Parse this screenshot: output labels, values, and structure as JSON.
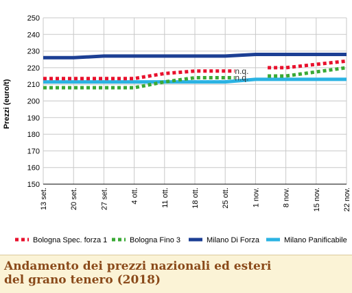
{
  "chart_data": {
    "type": "line",
    "ylabel": "Prezzi (euro/t)",
    "xlabel": "",
    "ylim": [
      150,
      250
    ],
    "yticks": [
      150,
      160,
      170,
      180,
      190,
      200,
      210,
      220,
      230,
      240,
      250
    ],
    "categories": [
      "13 set.",
      "20 set.",
      "27 set.",
      "4 ott.",
      "11 ott.",
      "18 ott.",
      "25 ott.",
      "1 nov.",
      "8 nov.",
      "15 nov.",
      "22 nov."
    ],
    "grid": true,
    "legend_position": "bottom",
    "series": [
      {
        "name": "Bologna Spec. forza 1",
        "color": "#e8112d",
        "style": "dotted",
        "values": [
          213.5,
          213.5,
          213.5,
          213.5,
          216.5,
          218,
          218,
          null,
          220,
          222,
          224
        ]
      },
      {
        "name": "Bologna Fino 3",
        "color": "#3aa935",
        "style": "dotted",
        "values": [
          208,
          208,
          208,
          208,
          211.5,
          214,
          214,
          null,
          215,
          217.5,
          220
        ]
      },
      {
        "name": "Milano Di Forza",
        "color": "#1c3f94",
        "style": "solid",
        "values": [
          226,
          226,
          227,
          227,
          227,
          227,
          227,
          228,
          228,
          228,
          228
        ]
      },
      {
        "name": "Milano Panificabile",
        "color": "#2bb3e3",
        "style": "solid",
        "values": [
          211.5,
          211.5,
          211.5,
          211.5,
          211.5,
          211.5,
          211.5,
          213,
          213,
          213,
          213
        ]
      }
    ],
    "annotations": [
      {
        "text": "n.q.",
        "x": "1 nov.",
        "y": 218
      },
      {
        "text": "n.q.",
        "x": "1 nov.",
        "y": 214
      }
    ]
  },
  "caption": {
    "title": "Andamento dei prezzi nazionali ed esteri\ndel grano tenero (2018)"
  }
}
